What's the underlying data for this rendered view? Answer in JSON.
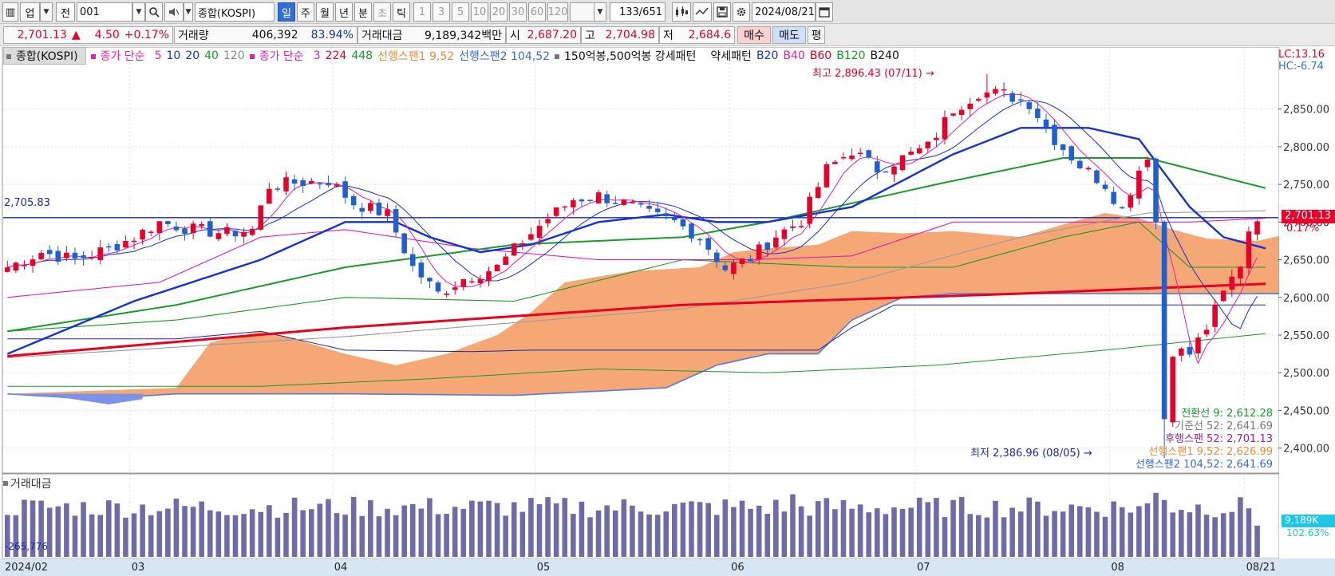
{
  "toolbar": {
    "market": "업",
    "sel_prev": "전",
    "code": "001",
    "name": "종합(KOSPI)",
    "periods": [
      "일",
      "주",
      "월",
      "년",
      "분",
      "초",
      "틱"
    ],
    "intervals": [
      "1",
      "3",
      "5",
      "10",
      "20",
      "30",
      "60",
      "120"
    ],
    "count": "133",
    "total": "/651",
    "date": "2024/08/21"
  },
  "quote": {
    "price": "2,701.13",
    "arrow": "▲",
    "change": "4.50",
    "change_pct": "+0.17%",
    "volume_label": "거래량",
    "volume": "406,392",
    "volume_pct": "83.94%",
    "amount_label": "거래대금",
    "amount": "9,189,342백만",
    "open_label": "시",
    "open": "2,687.20",
    "high_label": "고",
    "high": "2,704.98",
    "low_label": "저",
    "low": "2,684.6",
    "buy_label": "매수",
    "sell_label": "매도",
    "even_label": "평"
  },
  "legend": {
    "main": "종합(KOSPI)",
    "ma_label": "종가 단순",
    "ma_periods": [
      "5",
      "10",
      "20",
      "40",
      "120"
    ],
    "ma2_label": "종가 단순",
    "ma2_periods": [
      "3",
      "224",
      "448"
    ],
    "span1": "선행스팬1 9,52",
    "span2": "선행스팬2 104,52",
    "pattern": "150억봉,500억봉 강세패턴",
    "pattern2": "약세패턴",
    "b_lines": [
      "B20",
      "B40",
      "B60",
      "B120",
      "B240"
    ]
  },
  "corner": {
    "lc": "LC:13.16",
    "hc": "HC:-6.74"
  },
  "labels": {
    "hline_value": "2,705.83",
    "high_note": "최고 2,896.43 (07/11)",
    "low_note": "최저 2,386.96 (08/05)",
    "last_price_tag": "2,701.13",
    "last_pct_tag": "0.17%",
    "vol_title": "거래대금",
    "vol_min": "265,776",
    "vol_last_tag": "9,189K",
    "vol_pct_tag": "102.63%"
  },
  "ichimoku_notes": [
    {
      "text": "전환선 9: 2,612.28",
      "color": "#1a9a2a"
    },
    {
      "text": "기준선 52: 2,641.69",
      "color": "#777777"
    },
    {
      "text": "후행스팬 52: 2,701.13",
      "color": "#9b1fa0"
    },
    {
      "text": "선행스팬1 9,52: 2,626.99",
      "color": "#f08a3a"
    },
    {
      "text": "선행스팬2 104,52: 2,641.69",
      "color": "#3a6ad6"
    }
  ],
  "colors": {
    "up": "#e8002a",
    "down": "#1f5fd0",
    "cloud": "#f4a06a",
    "ma224": "#e8001e",
    "ma20": "#1430d8",
    "ma40": "#1a9a2a",
    "ma5": "#e020b0"
  },
  "chart_data": {
    "type": "candlestick",
    "title": "종합(KOSPI)",
    "ylim": [
      2370,
      2910
    ],
    "y_ticks": [
      2400,
      2450,
      2500,
      2550,
      2600,
      2650,
      2700,
      2750,
      2800,
      2850
    ],
    "y_tick_labels": [
      "2,400.00",
      "2,450.00",
      "2,500.00",
      "2,550.00",
      "2,600.00",
      "2,650.00",
      "2,700.00",
      "2,750.00",
      "2,800.00",
      "2,850.00"
    ],
    "hline": 2705.83,
    "x_month_labels": [
      {
        "label": "2024/02",
        "index": 0
      },
      {
        "label": "03",
        "index": 15
      },
      {
        "label": "04",
        "index": 39
      },
      {
        "label": "05",
        "index": 63
      },
      {
        "label": "06",
        "index": 86
      },
      {
        "label": "07",
        "index": 108
      },
      {
        "label": "08",
        "index": 131
      },
      {
        "label": "08/21",
        "index": 147
      }
    ],
    "n_slots": 151,
    "anchors": [
      [
        0,
        2640
      ],
      [
        4,
        2660
      ],
      [
        8,
        2650
      ],
      [
        12,
        2665
      ],
      [
        15,
        2680
      ],
      [
        18,
        2700
      ],
      [
        22,
        2690
      ],
      [
        26,
        2685
      ],
      [
        29,
        2690
      ],
      [
        31,
        2748
      ],
      [
        34,
        2752
      ],
      [
        38,
        2755
      ],
      [
        41,
        2725
      ],
      [
        45,
        2710
      ],
      [
        48,
        2640
      ],
      [
        51,
        2605
      ],
      [
        54,
        2625
      ],
      [
        58,
        2640
      ],
      [
        61,
        2675
      ],
      [
        64,
        2705
      ],
      [
        67,
        2730
      ],
      [
        70,
        2735
      ],
      [
        73,
        2725
      ],
      [
        76,
        2710
      ],
      [
        79,
        2700
      ],
      [
        82,
        2680
      ],
      [
        85,
        2638
      ],
      [
        88,
        2652
      ],
      [
        91,
        2682
      ],
      [
        94,
        2702
      ],
      [
        97,
        2770
      ],
      [
        100,
        2795
      ],
      [
        103,
        2770
      ],
      [
        106,
        2785
      ],
      [
        109,
        2800
      ],
      [
        112,
        2850
      ],
      [
        115,
        2872
      ],
      [
        118,
        2870
      ],
      [
        121,
        2858
      ],
      [
        124,
        2810
      ],
      [
        127,
        2775
      ],
      [
        130,
        2750
      ],
      [
        132,
        2716
      ],
      [
        134,
        2770
      ],
      [
        135,
        2790
      ],
      [
        136,
        2700
      ],
      [
        137,
        2440
      ],
      [
        138,
        2530
      ],
      [
        140,
        2525
      ],
      [
        142,
        2560
      ],
      [
        144,
        2605
      ],
      [
        146,
        2645
      ],
      [
        147,
        2690
      ],
      [
        148,
        2701
      ]
    ],
    "vol_ylim": [
      0,
      110
    ],
    "cloud_upper": [
      [
        0,
        2472
      ],
      [
        20,
        2480
      ],
      [
        24,
        2540
      ],
      [
        30,
        2555
      ],
      [
        34,
        2545
      ],
      [
        40,
        2525
      ],
      [
        46,
        2510
      ],
      [
        52,
        2525
      ],
      [
        58,
        2550
      ],
      [
        62,
        2580
      ],
      [
        66,
        2620
      ],
      [
        74,
        2635
      ],
      [
        82,
        2640
      ],
      [
        86,
        2660
      ],
      [
        90,
        2665
      ],
      [
        96,
        2670
      ],
      [
        100,
        2688
      ],
      [
        106,
        2685
      ],
      [
        112,
        2688
      ],
      [
        120,
        2680
      ],
      [
        126,
        2700
      ],
      [
        130,
        2712
      ],
      [
        134,
        2705
      ],
      [
        138,
        2690
      ],
      [
        142,
        2678
      ],
      [
        148,
        2675
      ],
      [
        152,
        2685
      ]
    ],
    "cloud_lower": [
      [
        0,
        2472
      ],
      [
        10,
        2465
      ],
      [
        20,
        2472
      ],
      [
        40,
        2472
      ],
      [
        60,
        2470
      ],
      [
        78,
        2480
      ],
      [
        84,
        2510
      ],
      [
        90,
        2525
      ],
      [
        96,
        2525
      ],
      [
        100,
        2570
      ],
      [
        106,
        2600
      ],
      [
        112,
        2605
      ],
      [
        130,
        2605
      ],
      [
        152,
        2605
      ]
    ],
    "ma224": [
      [
        0,
        2522
      ],
      [
        40,
        2560
      ],
      [
        80,
        2590
      ],
      [
        120,
        2605
      ],
      [
        135,
        2612
      ],
      [
        149,
        2618
      ]
    ],
    "ma448": [
      [
        0,
        2520
      ],
      [
        40,
        2548
      ],
      [
        80,
        2585
      ],
      [
        100,
        2620
      ],
      [
        120,
        2680
      ],
      [
        135,
        2712
      ],
      [
        149,
        2715
      ]
    ],
    "ma120": [
      [
        0,
        2555
      ],
      [
        20,
        2590
      ],
      [
        40,
        2640
      ],
      [
        60,
        2670
      ],
      [
        80,
        2680
      ],
      [
        90,
        2700
      ],
      [
        110,
        2750
      ],
      [
        125,
        2785
      ],
      [
        135,
        2785
      ],
      [
        149,
        2745
      ]
    ],
    "ma20": [
      [
        0,
        2525
      ],
      [
        15,
        2595
      ],
      [
        30,
        2650
      ],
      [
        40,
        2700
      ],
      [
        46,
        2700
      ],
      [
        50,
        2680
      ],
      [
        56,
        2660
      ],
      [
        62,
        2670
      ],
      [
        70,
        2700
      ],
      [
        78,
        2710
      ],
      [
        84,
        2700
      ],
      [
        90,
        2700
      ],
      [
        100,
        2720
      ],
      [
        112,
        2790
      ],
      [
        120,
        2825
      ],
      [
        128,
        2825
      ],
      [
        134,
        2810
      ],
      [
        140,
        2720
      ],
      [
        144,
        2680
      ],
      [
        149,
        2665
      ]
    ]
  }
}
